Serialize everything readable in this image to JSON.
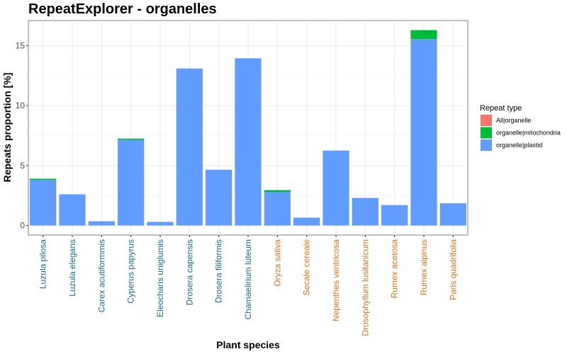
{
  "chart_data": {
    "type": "bar",
    "stacked": true,
    "title": "RepeatExplorer - organelles",
    "xlabel": "Plant species",
    "ylabel": "Repeats proportion [%]",
    "ylim": [
      -0.8,
      17.1
    ],
    "yticks": [
      0,
      5,
      10,
      15
    ],
    "grid": true,
    "legend_position": "right",
    "legend_title": "Repeat type",
    "categories": [
      "Luzula pilosa",
      "Luzula elegans",
      "Carex acutiformmis",
      "Cyperus papyrus",
      "Eleocharis uniglumis",
      "Drosera capensis",
      "Drosera filiformis",
      "Chamaelirium luteum",
      "Oryza sativa",
      "Secale cereale",
      "Nepenthes ventricosa",
      "Drosophyllum lusitanicum",
      "Rumex acetosa",
      "Rumex alpinus",
      "Paris quadrifolia"
    ],
    "category_colors": [
      "#1a6e8c",
      "#1a6e8c",
      "#1a6e8c",
      "#1a6e8c",
      "#1a6e8c",
      "#1a6e8c",
      "#1a6e8c",
      "#1a6e8c",
      "#e8731e",
      "#e8731e",
      "#e8731e",
      "#e8731e",
      "#e8731e",
      "#e8731e",
      "#e8731e"
    ],
    "series": [
      {
        "name": "organelle|plastid",
        "color": "#619cff",
        "values": [
          3.8,
          2.6,
          0.35,
          7.15,
          0.3,
          13.1,
          4.65,
          13.95,
          2.8,
          0.65,
          6.25,
          2.3,
          1.7,
          15.55,
          1.85
        ]
      },
      {
        "name": "organelle|mitochondria",
        "color": "#00ba38",
        "values": [
          0.1,
          0,
          0,
          0.1,
          0,
          0,
          0,
          0,
          0.15,
          0,
          0,
          0,
          0,
          0.75,
          0
        ]
      },
      {
        "name": "All|organelle",
        "color": "#f8766d",
        "values": [
          0,
          0,
          0,
          0,
          0,
          0,
          0,
          0,
          0,
          0,
          0,
          0,
          0,
          0,
          0
        ]
      }
    ],
    "legend_order": [
      "All|organelle",
      "organelle|mitochondria",
      "organelle|plastid"
    ]
  }
}
